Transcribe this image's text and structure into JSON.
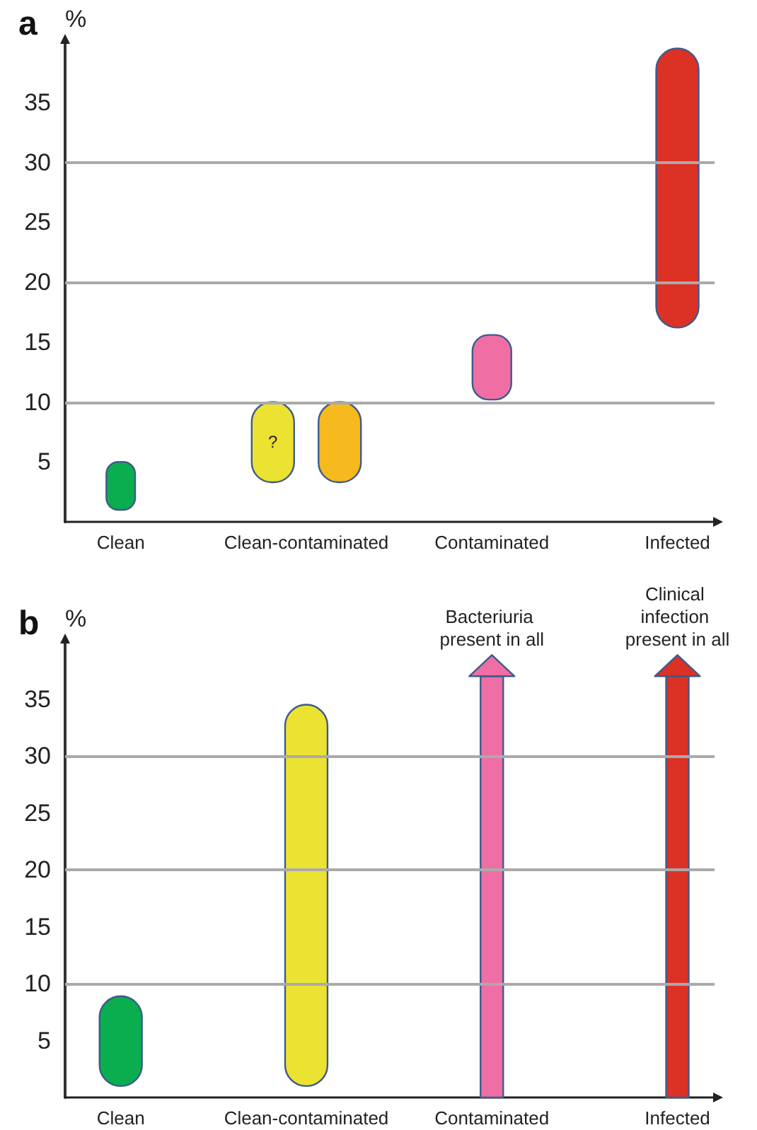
{
  "chart_data": [
    {
      "type": "bar",
      "title": "a",
      "ylabel": "%",
      "categories": [
        "Clean",
        "Clean-contaminated",
        "Contaminated",
        "Infected"
      ],
      "ylim": [
        0,
        40
      ],
      "yticks": [
        5,
        10,
        15,
        20,
        25,
        30,
        35
      ],
      "series": [
        {
          "colors": [
            "#0aae4e",
            "#ebe231",
            "#ef6fa4",
            "#dc3125"
          ],
          "base": [
            1,
            3.3,
            10.2,
            16.2
          ],
          "values": [
            4,
            6.7,
            5.4,
            23.3
          ],
          "value_labels": [
            null,
            "?",
            null,
            null
          ]
        },
        {
          "colors": [
            null,
            "#f6b91e",
            null,
            null
          ],
          "base": [
            null,
            3.3,
            null,
            null
          ],
          "values": [
            null,
            6.7,
            null,
            null
          ]
        }
      ],
      "ref_lines": [
        {
          "axis": "y",
          "value": 10,
          "color": "#aaaaaa"
        },
        {
          "axis": "y",
          "value": 20,
          "color": "#aaaaaa"
        },
        {
          "axis": "y",
          "value": 30,
          "color": "#aaaaaa"
        }
      ],
      "grid": false
    },
    {
      "type": "bar",
      "title": "b",
      "ylabel": "%",
      "categories": [
        "Clean",
        "Clean-contaminated",
        "Contaminated",
        "Infected"
      ],
      "ylim": [
        0,
        40
      ],
      "yticks": [
        5,
        10,
        15,
        20,
        25,
        30,
        35
      ],
      "series": [
        {
          "colors": [
            "#0aae4e",
            "#ebe231",
            null,
            null
          ],
          "base": [
            1,
            1,
            null,
            null
          ],
          "values": [
            7.9,
            33.5,
            null,
            null
          ]
        },
        {
          "colors": [
            null,
            null,
            "#ef6fa4",
            "#dc3125"
          ],
          "values": [
            null,
            null,
            37,
            37
          ],
          "value_labels": [
            null,
            null,
            "Bacteriuria present in all",
            "Clinical infection present in all"
          ]
        }
      ],
      "ref_lines": [
        {
          "axis": "y",
          "value": 10,
          "color": "#aaaaaa"
        },
        {
          "axis": "y",
          "value": 20,
          "color": "#aaaaaa"
        },
        {
          "axis": "y",
          "value": 30,
          "color": "#aaaaaa"
        }
      ],
      "grid": false
    }
  ]
}
